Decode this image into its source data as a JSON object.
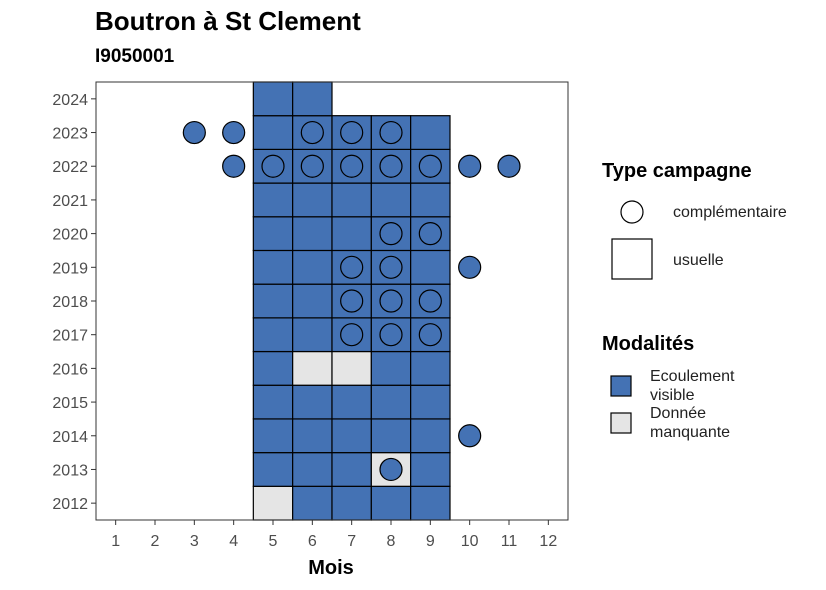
{
  "header": {
    "title": "Boutron à St Clement",
    "subtitle": "I9050001"
  },
  "legend": {
    "type_title": "Type campagne",
    "type_items": [
      {
        "label": "complémentaire",
        "shape": "circle"
      },
      {
        "label": "usuelle",
        "shape": "square"
      }
    ],
    "modalites_title": "Modalités",
    "modalites_items": [
      {
        "label_line1": "Ecoulement",
        "label_line2": "visible",
        "color": "#4472b4"
      },
      {
        "label_line1": "Donnée",
        "label_line2": "manquante",
        "color": "#e5e5e5"
      }
    ]
  },
  "chart_data": {
    "type": "heatmap",
    "title": "Boutron à St Clement",
    "subtitle": "I9050001",
    "xlabel": "Mois",
    "ylabel": "",
    "x_ticks": [
      1,
      2,
      3,
      4,
      5,
      6,
      7,
      8,
      9,
      10,
      11,
      12
    ],
    "y_ticks": [
      2012,
      2013,
      2014,
      2015,
      2016,
      2017,
      2018,
      2019,
      2020,
      2021,
      2022,
      2023,
      2024
    ],
    "xlim": [
      0.5,
      12.5
    ],
    "ylim": [
      2011.5,
      2024.5
    ],
    "grid": false,
    "legend_position": "right",
    "colors": {
      "Ecoulement visible": "#4472b4",
      "Donnée manquante": "#e5e5e5"
    },
    "usuelle": [
      {
        "year": 2012,
        "month": 5,
        "modalite": "Donnée manquante"
      },
      {
        "year": 2012,
        "month": 6,
        "modalite": "Ecoulement visible"
      },
      {
        "year": 2012,
        "month": 7,
        "modalite": "Ecoulement visible"
      },
      {
        "year": 2012,
        "month": 8,
        "modalite": "Ecoulement visible"
      },
      {
        "year": 2012,
        "month": 9,
        "modalite": "Ecoulement visible"
      },
      {
        "year": 2013,
        "month": 5,
        "modalite": "Ecoulement visible"
      },
      {
        "year": 2013,
        "month": 6,
        "modalite": "Ecoulement visible"
      },
      {
        "year": 2013,
        "month": 7,
        "modalite": "Ecoulement visible"
      },
      {
        "year": 2013,
        "month": 8,
        "modalite": "Donnée manquante"
      },
      {
        "year": 2013,
        "month": 9,
        "modalite": "Ecoulement visible"
      },
      {
        "year": 2014,
        "month": 5,
        "modalite": "Ecoulement visible"
      },
      {
        "year": 2014,
        "month": 6,
        "modalite": "Ecoulement visible"
      },
      {
        "year": 2014,
        "month": 7,
        "modalite": "Ecoulement visible"
      },
      {
        "year": 2014,
        "month": 8,
        "modalite": "Ecoulement visible"
      },
      {
        "year": 2014,
        "month": 9,
        "modalite": "Ecoulement visible"
      },
      {
        "year": 2015,
        "month": 5,
        "modalite": "Ecoulement visible"
      },
      {
        "year": 2015,
        "month": 6,
        "modalite": "Ecoulement visible"
      },
      {
        "year": 2015,
        "month": 7,
        "modalite": "Ecoulement visible"
      },
      {
        "year": 2015,
        "month": 8,
        "modalite": "Ecoulement visible"
      },
      {
        "year": 2015,
        "month": 9,
        "modalite": "Ecoulement visible"
      },
      {
        "year": 2016,
        "month": 5,
        "modalite": "Ecoulement visible"
      },
      {
        "year": 2016,
        "month": 6,
        "modalite": "Donnée manquante"
      },
      {
        "year": 2016,
        "month": 7,
        "modalite": "Donnée manquante"
      },
      {
        "year": 2016,
        "month": 8,
        "modalite": "Ecoulement visible"
      },
      {
        "year": 2016,
        "month": 9,
        "modalite": "Ecoulement visible"
      },
      {
        "year": 2017,
        "month": 5,
        "modalite": "Ecoulement visible"
      },
      {
        "year": 2017,
        "month": 6,
        "modalite": "Ecoulement visible"
      },
      {
        "year": 2017,
        "month": 7,
        "modalite": "Ecoulement visible"
      },
      {
        "year": 2017,
        "month": 8,
        "modalite": "Ecoulement visible"
      },
      {
        "year": 2017,
        "month": 9,
        "modalite": "Ecoulement visible"
      },
      {
        "year": 2018,
        "month": 5,
        "modalite": "Ecoulement visible"
      },
      {
        "year": 2018,
        "month": 6,
        "modalite": "Ecoulement visible"
      },
      {
        "year": 2018,
        "month": 7,
        "modalite": "Ecoulement visible"
      },
      {
        "year": 2018,
        "month": 8,
        "modalite": "Ecoulement visible"
      },
      {
        "year": 2018,
        "month": 9,
        "modalite": "Ecoulement visible"
      },
      {
        "year": 2019,
        "month": 5,
        "modalite": "Ecoulement visible"
      },
      {
        "year": 2019,
        "month": 6,
        "modalite": "Ecoulement visible"
      },
      {
        "year": 2019,
        "month": 7,
        "modalite": "Ecoulement visible"
      },
      {
        "year": 2019,
        "month": 8,
        "modalite": "Ecoulement visible"
      },
      {
        "year": 2019,
        "month": 9,
        "modalite": "Ecoulement visible"
      },
      {
        "year": 2020,
        "month": 5,
        "modalite": "Ecoulement visible"
      },
      {
        "year": 2020,
        "month": 6,
        "modalite": "Ecoulement visible"
      },
      {
        "year": 2020,
        "month": 7,
        "modalite": "Ecoulement visible"
      },
      {
        "year": 2020,
        "month": 8,
        "modalite": "Ecoulement visible"
      },
      {
        "year": 2020,
        "month": 9,
        "modalite": "Ecoulement visible"
      },
      {
        "year": 2021,
        "month": 5,
        "modalite": "Ecoulement visible"
      },
      {
        "year": 2021,
        "month": 6,
        "modalite": "Ecoulement visible"
      },
      {
        "year": 2021,
        "month": 7,
        "modalite": "Ecoulement visible"
      },
      {
        "year": 2021,
        "month": 8,
        "modalite": "Ecoulement visible"
      },
      {
        "year": 2021,
        "month": 9,
        "modalite": "Ecoulement visible"
      },
      {
        "year": 2022,
        "month": 5,
        "modalite": "Ecoulement visible"
      },
      {
        "year": 2022,
        "month": 6,
        "modalite": "Ecoulement visible"
      },
      {
        "year": 2022,
        "month": 7,
        "modalite": "Ecoulement visible"
      },
      {
        "year": 2022,
        "month": 8,
        "modalite": "Ecoulement visible"
      },
      {
        "year": 2022,
        "month": 9,
        "modalite": "Ecoulement visible"
      },
      {
        "year": 2023,
        "month": 5,
        "modalite": "Ecoulement visible"
      },
      {
        "year": 2023,
        "month": 6,
        "modalite": "Ecoulement visible"
      },
      {
        "year": 2023,
        "month": 7,
        "modalite": "Ecoulement visible"
      },
      {
        "year": 2023,
        "month": 8,
        "modalite": "Ecoulement visible"
      },
      {
        "year": 2023,
        "month": 9,
        "modalite": "Ecoulement visible"
      },
      {
        "year": 2024,
        "month": 5,
        "modalite": "Ecoulement visible"
      },
      {
        "year": 2024,
        "month": 6,
        "modalite": "Ecoulement visible"
      }
    ],
    "complementaire": [
      {
        "year": 2013,
        "month": 8,
        "modalite": "Ecoulement visible"
      },
      {
        "year": 2014,
        "month": 10,
        "modalite": "Ecoulement visible"
      },
      {
        "year": 2017,
        "month": 7,
        "modalite": "Ecoulement visible"
      },
      {
        "year": 2017,
        "month": 8,
        "modalite": "Ecoulement visible"
      },
      {
        "year": 2017,
        "month": 9,
        "modalite": "Ecoulement visible"
      },
      {
        "year": 2018,
        "month": 7,
        "modalite": "Ecoulement visible"
      },
      {
        "year": 2018,
        "month": 8,
        "modalite": "Ecoulement visible"
      },
      {
        "year": 2018,
        "month": 9,
        "modalite": "Ecoulement visible"
      },
      {
        "year": 2019,
        "month": 7,
        "modalite": "Ecoulement visible"
      },
      {
        "year": 2019,
        "month": 8,
        "modalite": "Ecoulement visible"
      },
      {
        "year": 2019,
        "month": 10,
        "modalite": "Ecoulement visible"
      },
      {
        "year": 2020,
        "month": 8,
        "modalite": "Ecoulement visible"
      },
      {
        "year": 2020,
        "month": 9,
        "modalite": "Ecoulement visible"
      },
      {
        "year": 2022,
        "month": 4,
        "modalite": "Ecoulement visible"
      },
      {
        "year": 2022,
        "month": 5,
        "modalite": "Ecoulement visible"
      },
      {
        "year": 2022,
        "month": 6,
        "modalite": "Ecoulement visible"
      },
      {
        "year": 2022,
        "month": 7,
        "modalite": "Ecoulement visible"
      },
      {
        "year": 2022,
        "month": 8,
        "modalite": "Ecoulement visible"
      },
      {
        "year": 2022,
        "month": 9,
        "modalite": "Ecoulement visible"
      },
      {
        "year": 2022,
        "month": 10,
        "modalite": "Ecoulement visible"
      },
      {
        "year": 2022,
        "month": 11,
        "modalite": "Ecoulement visible"
      },
      {
        "year": 2023,
        "month": 3,
        "modalite": "Ecoulement visible"
      },
      {
        "year": 2023,
        "month": 4,
        "modalite": "Ecoulement visible"
      },
      {
        "year": 2023,
        "month": 6,
        "modalite": "Ecoulement visible"
      },
      {
        "year": 2023,
        "month": 7,
        "modalite": "Ecoulement visible"
      },
      {
        "year": 2023,
        "month": 8,
        "modalite": "Ecoulement visible"
      }
    ]
  }
}
